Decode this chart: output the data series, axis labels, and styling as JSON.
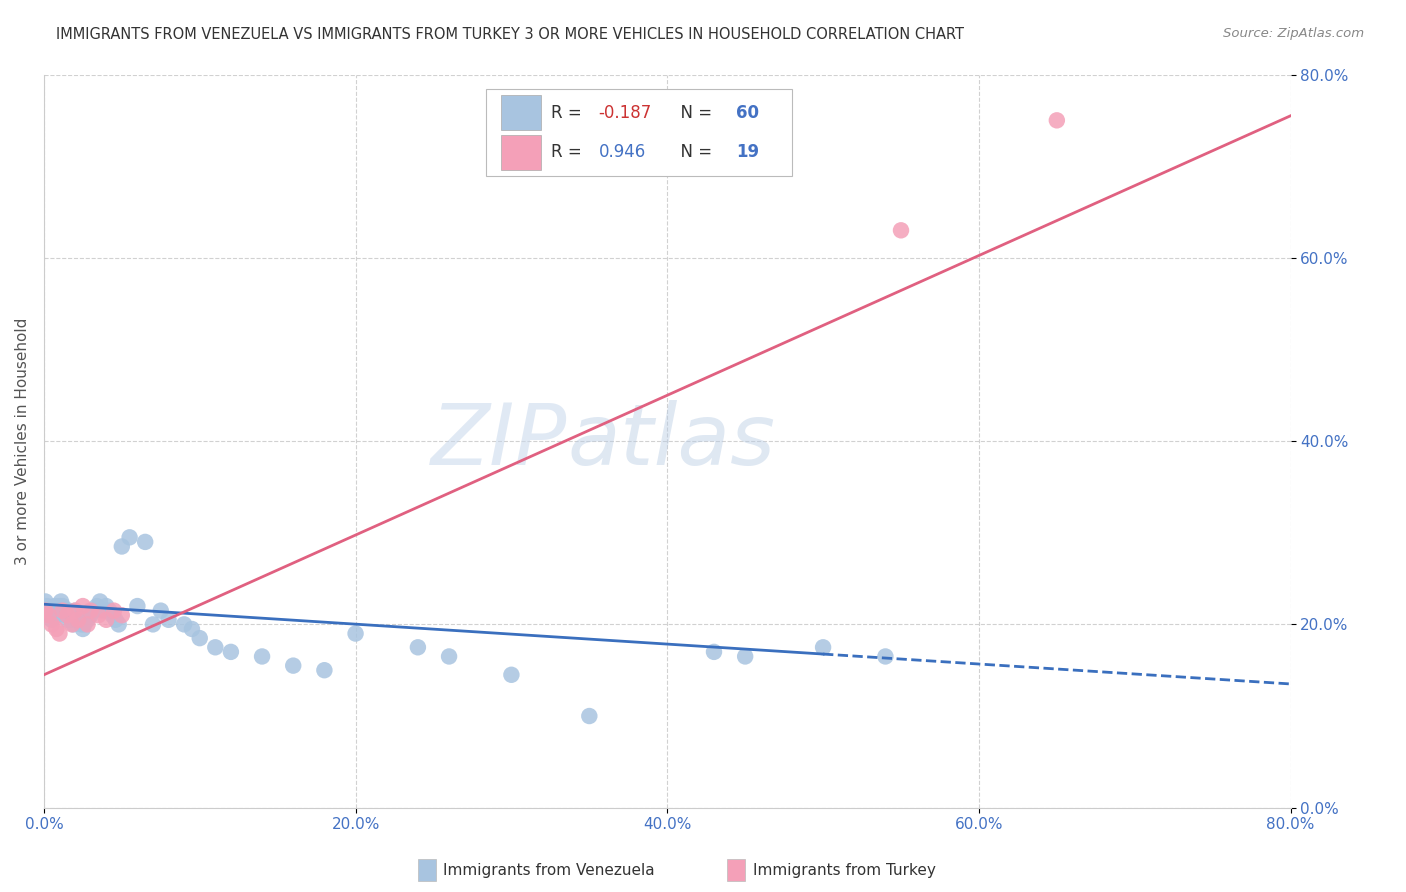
{
  "title": "IMMIGRANTS FROM VENEZUELA VS IMMIGRANTS FROM TURKEY 3 OR MORE VEHICLES IN HOUSEHOLD CORRELATION CHART",
  "source": "Source: ZipAtlas.com",
  "ylabel": "3 or more Vehicles in Household",
  "xlim": [
    0.0,
    0.8
  ],
  "ylim": [
    0.0,
    0.8
  ],
  "yticks": [
    0.0,
    0.2,
    0.4,
    0.6,
    0.8
  ],
  "xticks": [
    0.0,
    0.2,
    0.4,
    0.6,
    0.8
  ],
  "legend_label1": "Immigrants from Venezuela",
  "legend_label2": "Immigrants from Turkey",
  "r_venezuela": -0.187,
  "n_venezuela": 60,
  "r_turkey": 0.946,
  "n_turkey": 19,
  "color_venezuela": "#a8c4e0",
  "color_turkey": "#f4a0b8",
  "line_color_venezuela": "#3a6fbe",
  "line_color_turkey": "#e06080",
  "watermark_zip": "ZIP",
  "watermark_atlas": "atlas",
  "background_color": "#ffffff",
  "venezuela_x": [
    0.001,
    0.002,
    0.003,
    0.004,
    0.005,
    0.006,
    0.007,
    0.008,
    0.009,
    0.01,
    0.011,
    0.012,
    0.013,
    0.014,
    0.015,
    0.016,
    0.017,
    0.018,
    0.019,
    0.02,
    0.021,
    0.022,
    0.024,
    0.025,
    0.026,
    0.028,
    0.03,
    0.032,
    0.034,
    0.036,
    0.038,
    0.04,
    0.042,
    0.044,
    0.046,
    0.048,
    0.05,
    0.055,
    0.06,
    0.065,
    0.07,
    0.075,
    0.08,
    0.09,
    0.095,
    0.1,
    0.11,
    0.12,
    0.14,
    0.16,
    0.18,
    0.2,
    0.24,
    0.26,
    0.3,
    0.35,
    0.43,
    0.45,
    0.5,
    0.54
  ],
  "venezuela_y": [
    0.225,
    0.22,
    0.215,
    0.21,
    0.205,
    0.215,
    0.22,
    0.21,
    0.215,
    0.22,
    0.225,
    0.22,
    0.215,
    0.21,
    0.205,
    0.215,
    0.21,
    0.205,
    0.2,
    0.215,
    0.21,
    0.205,
    0.2,
    0.195,
    0.2,
    0.205,
    0.21,
    0.215,
    0.22,
    0.225,
    0.215,
    0.22,
    0.215,
    0.21,
    0.205,
    0.2,
    0.285,
    0.295,
    0.22,
    0.29,
    0.2,
    0.215,
    0.205,
    0.2,
    0.195,
    0.185,
    0.175,
    0.17,
    0.165,
    0.155,
    0.15,
    0.19,
    0.175,
    0.165,
    0.145,
    0.1,
    0.17,
    0.165,
    0.175,
    0.165
  ],
  "turkey_x": [
    0.001,
    0.003,
    0.005,
    0.008,
    0.01,
    0.012,
    0.015,
    0.018,
    0.02,
    0.022,
    0.025,
    0.028,
    0.03,
    0.035,
    0.04,
    0.045,
    0.05,
    0.55,
    0.65
  ],
  "turkey_y": [
    0.215,
    0.21,
    0.2,
    0.195,
    0.19,
    0.215,
    0.21,
    0.2,
    0.215,
    0.205,
    0.22,
    0.2,
    0.215,
    0.21,
    0.205,
    0.215,
    0.21,
    0.63,
    0.75
  ],
  "ven_line_x0": 0.0,
  "ven_line_y0": 0.222,
  "ven_line_x1": 0.8,
  "ven_line_y1": 0.135,
  "ven_line_solid_end": 0.5,
  "tur_line_x0": 0.0,
  "tur_line_y0": 0.145,
  "tur_line_x1": 0.8,
  "tur_line_y1": 0.755
}
